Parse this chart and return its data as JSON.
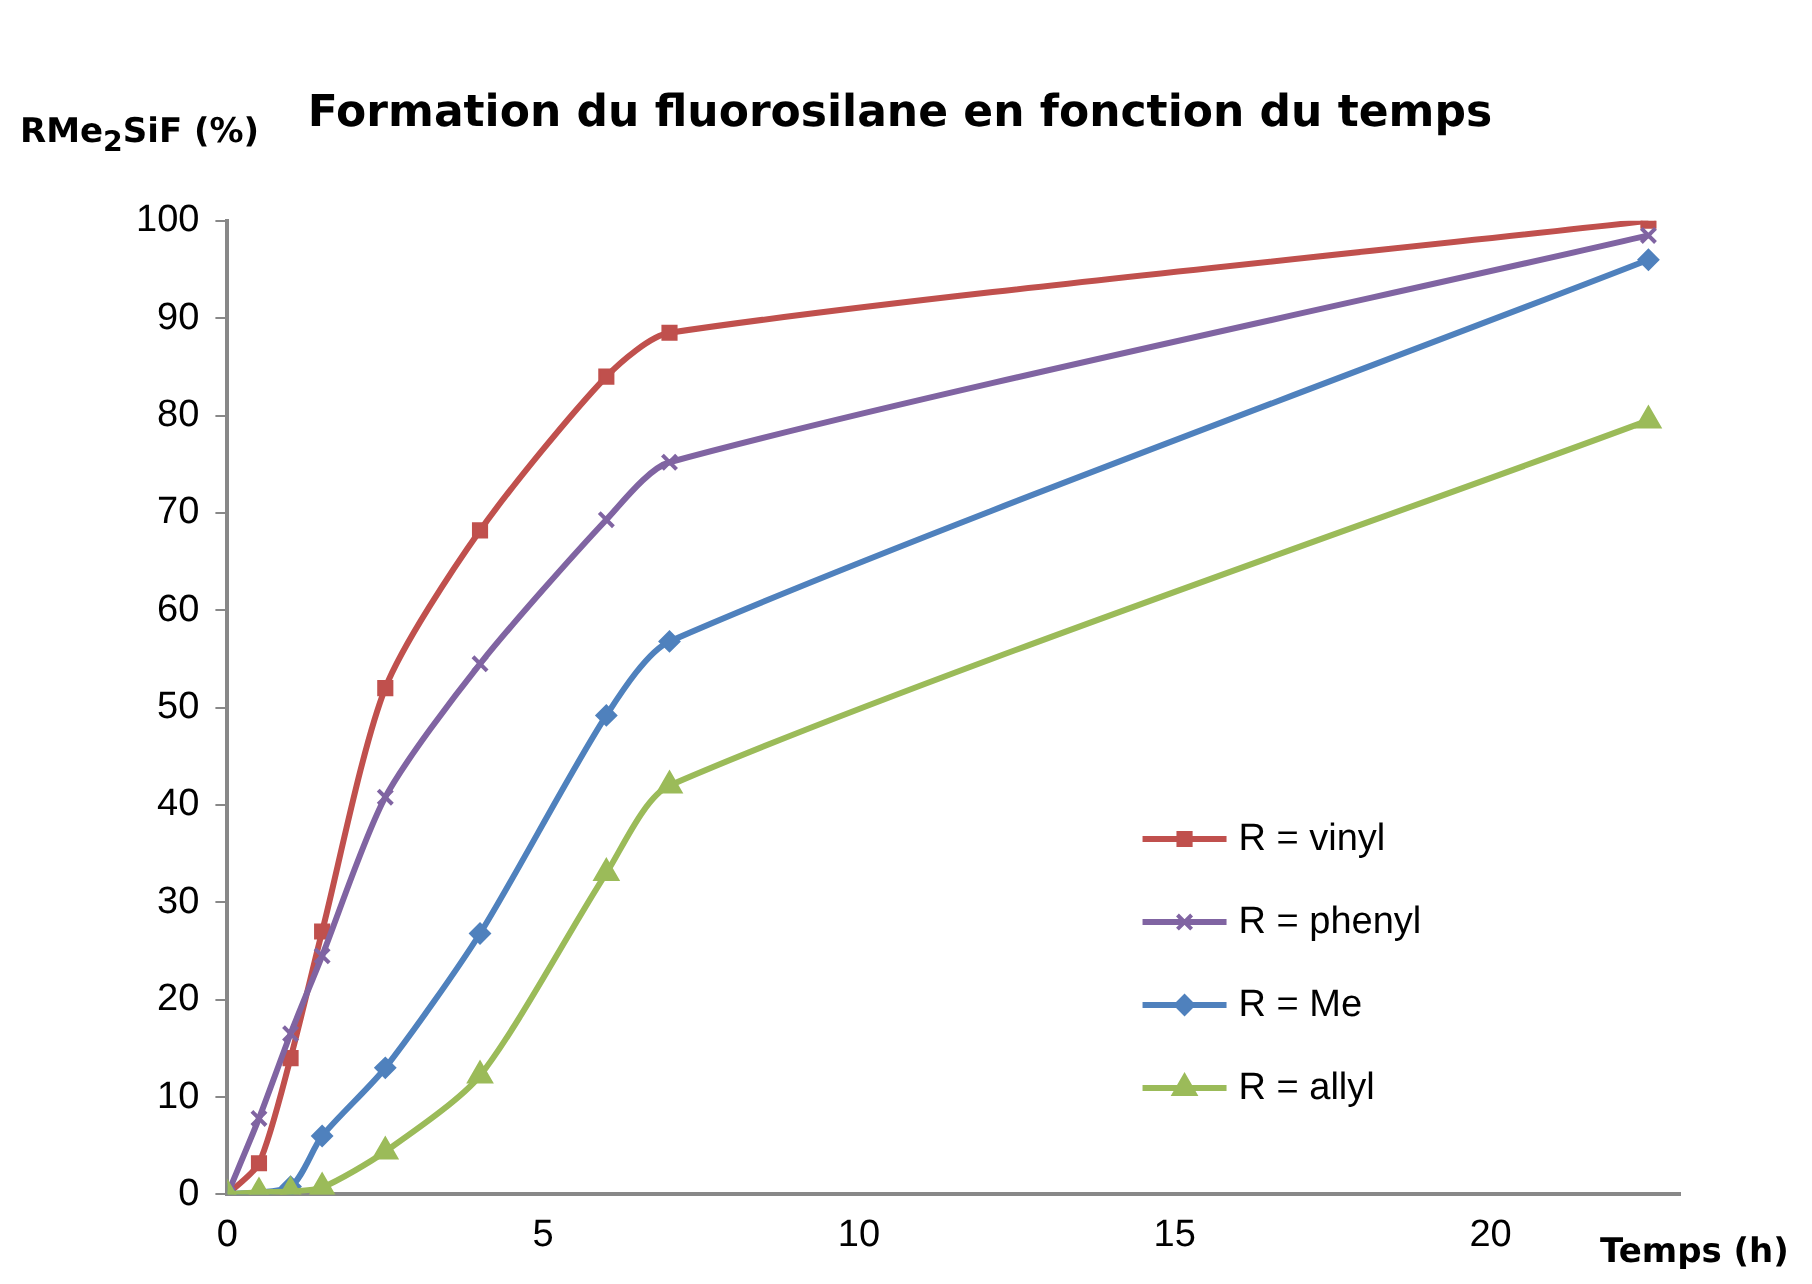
{
  "chart_data": {
    "type": "line",
    "title": "Formation du fluorosilane en fonction du temps",
    "xlabel": "Temps (h)",
    "ylabel": "RMe$_{2}$SiF (%)",
    "xlim": [
      0,
      23
    ],
    "xticks": [
      0,
      5,
      10,
      15,
      20
    ],
    "ylim": [
      0,
      100
    ],
    "yticks": [
      0,
      10,
      20,
      30,
      40,
      50,
      60,
      70,
      80,
      90,
      100
    ],
    "grid": false,
    "legend": "bottom right",
    "line_style": "solid",
    "series": [
      {
        "name": "R = vinyl",
        "color": "#c0504d",
        "marker": "square",
        "x": [
          0,
          0.5,
          1,
          1.5,
          2.5,
          4,
          6,
          7,
          22.5
        ],
        "values": [
          0,
          3.2,
          14,
          27,
          52,
          68.2,
          84,
          88.5,
          100
        ]
      },
      {
        "name": "R = phenyl",
        "color": "#8064a2",
        "marker": "cross",
        "x": [
          0,
          0.5,
          1,
          1.5,
          2.5,
          4,
          6,
          7,
          22.5
        ],
        "values": [
          0,
          7.8,
          16.5,
          24.5,
          40.8,
          54.5,
          69.3,
          75.2,
          98.5
        ]
      },
      {
        "name": "R = Me",
        "color": "#4f81bd",
        "marker": "diamond",
        "x": [
          0,
          1,
          1.5,
          2.5,
          4,
          6,
          7,
          22.5
        ],
        "values": [
          0,
          0.8,
          6,
          13,
          26.8,
          49.2,
          56.8,
          96
        ]
      },
      {
        "name": "R = allyl",
        "color": "#9bbb59",
        "marker": "triangle",
        "x": [
          0,
          0.5,
          1,
          1.5,
          2.5,
          4,
          6,
          7,
          22.5
        ],
        "values": [
          0,
          0.2,
          0.3,
          0.7,
          4.4,
          12.2,
          33,
          42,
          79.5
        ]
      }
    ]
  }
}
